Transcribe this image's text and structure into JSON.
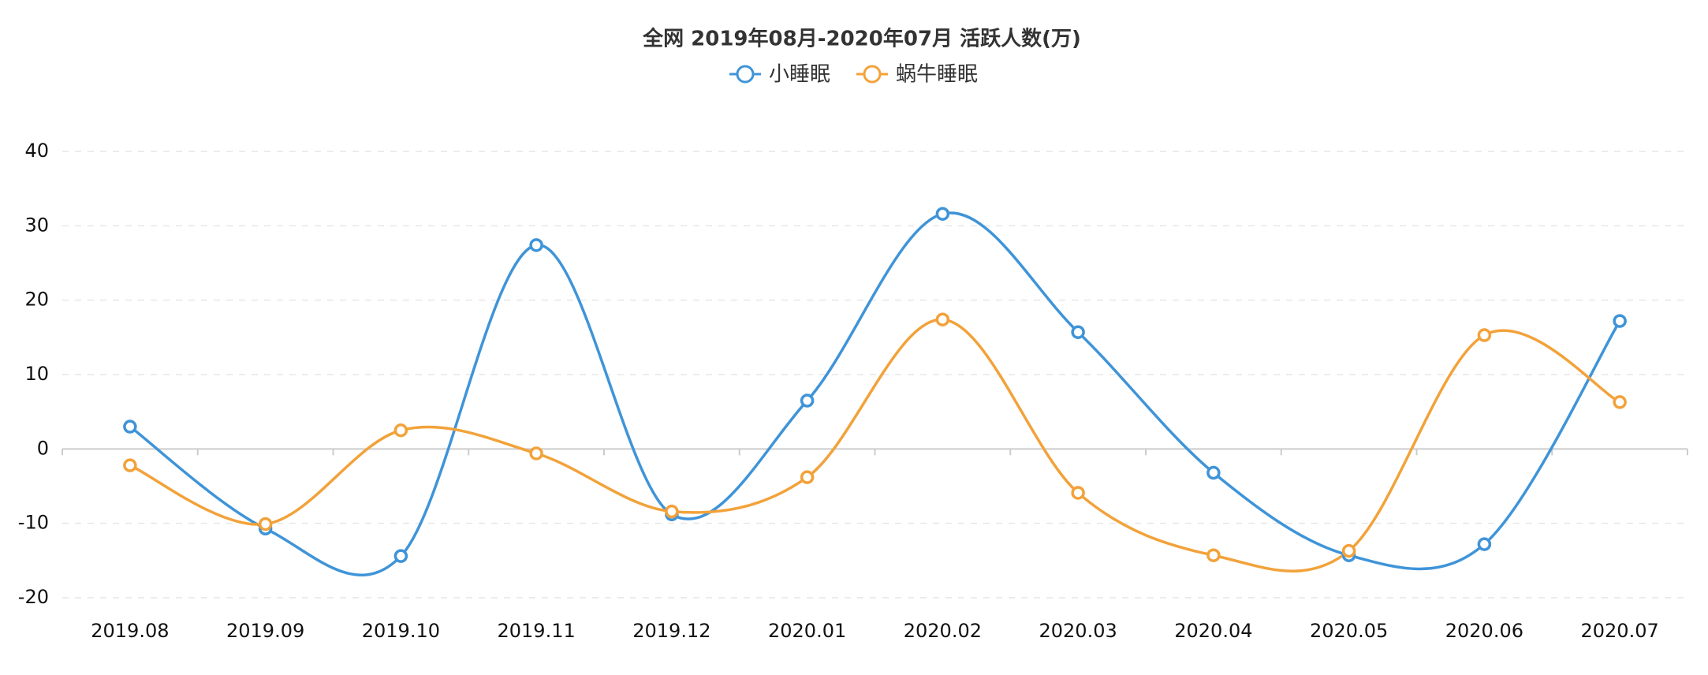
{
  "chart_data": {
    "type": "line",
    "title": "全网 2019年08月-2020年07月 活跃人数(万)",
    "categories": [
      "2019.08",
      "2019.09",
      "2019.10",
      "2019.11",
      "2019.12",
      "2020.01",
      "2020.02",
      "2020.03",
      "2020.04",
      "2020.05",
      "2020.06",
      "2020.07"
    ],
    "series": [
      {
        "name": "小睡眠",
        "color": "#3f94d8",
        "values": [
          3.0,
          -10.7,
          -14.4,
          27.4,
          -8.8,
          6.5,
          31.6,
          15.7,
          -3.2,
          -14.3,
          -12.8,
          17.2
        ]
      },
      {
        "name": "蜗牛睡眠",
        "color": "#f2a23a",
        "values": [
          -2.2,
          -10.1,
          2.5,
          -0.6,
          -8.4,
          -3.8,
          17.4,
          -5.9,
          -14.3,
          -13.7,
          15.3,
          6.3
        ]
      }
    ],
    "ylim": [
      -20,
      40
    ],
    "yticks": [
      -20,
      -10,
      0,
      10,
      20,
      30,
      40
    ],
    "grid": true,
    "smooth": true
  }
}
